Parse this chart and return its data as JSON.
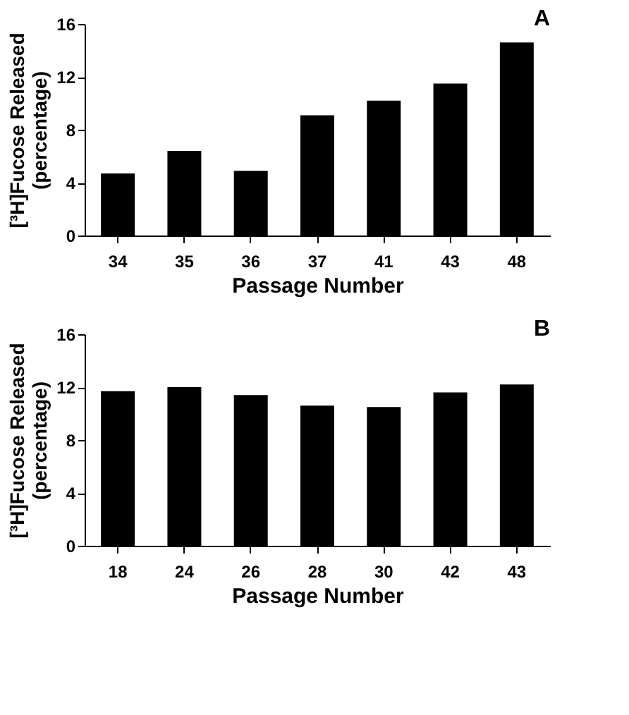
{
  "chart_data": [
    {
      "type": "bar",
      "title": "A",
      "xlabel": "Passage Number",
      "ylabel": "[³H]Fucose Released\n(percentage)",
      "categories": [
        "34",
        "35",
        "36",
        "37",
        "41",
        "43",
        "48"
      ],
      "values": [
        4.7,
        6.4,
        4.9,
        9.1,
        10.2,
        11.5,
        14.6
      ],
      "color": "#000000",
      "ylim": [
        0,
        16
      ],
      "yticks": [
        0,
        4,
        8,
        12,
        16
      ],
      "grid": false
    },
    {
      "type": "bar",
      "title": "B",
      "xlabel": "Passage Number",
      "ylabel": "[³H]Fucose Released\n(percentage)",
      "categories": [
        "18",
        "24",
        "26",
        "28",
        "30",
        "42",
        "43"
      ],
      "values": [
        11.7,
        12.0,
        11.4,
        10.6,
        10.5,
        11.6,
        12.2
      ],
      "color": "#000000",
      "ylim": [
        0,
        16
      ],
      "yticks": [
        0,
        4,
        8,
        12,
        16
      ],
      "grid": false
    }
  ]
}
